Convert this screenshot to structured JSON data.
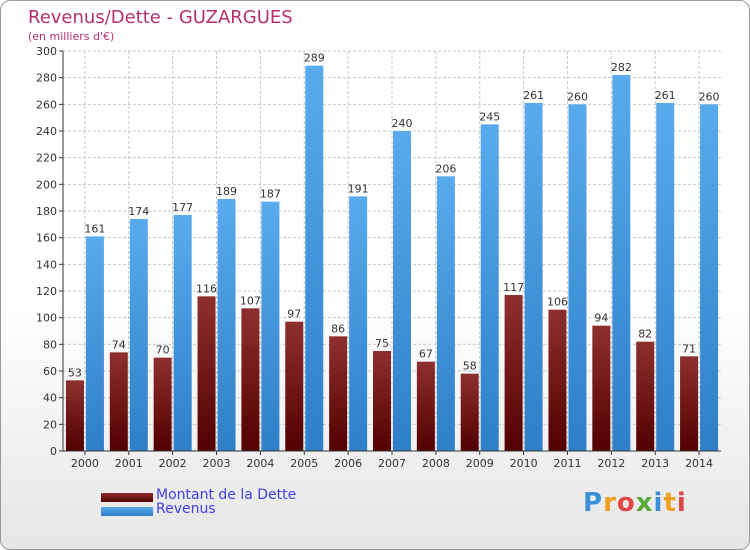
{
  "title": "Revenus/Dette - GUZARGUES",
  "subtitle": "(en milliers d'€)",
  "legend": {
    "dette": "Montant de la Dette",
    "revenus": "Revenus"
  },
  "logo": {
    "letters": [
      "P",
      "r",
      "o",
      "x",
      "i",
      "t",
      "i"
    ]
  },
  "colors": {
    "dette_top": "#8e2f2f",
    "dette_bottom": "#520000",
    "revenus_top": "#5aaaee",
    "revenus_bottom": "#2f7fc8",
    "title": "#b5306c",
    "legend_text": "#4040e6"
  },
  "chart_data": {
    "type": "bar",
    "title": "Revenus/Dette - GUZARGUES",
    "subtitle": "(en milliers d'€)",
    "categories": [
      "2000",
      "2001",
      "2002",
      "2003",
      "2004",
      "2005",
      "2006",
      "2007",
      "2008",
      "2009",
      "2010",
      "2011",
      "2012",
      "2013",
      "2014"
    ],
    "series": [
      {
        "name": "Montant de la Dette",
        "values": [
          53,
          74,
          70,
          116,
          107,
          97,
          86,
          75,
          67,
          58,
          117,
          106,
          94,
          82,
          71
        ]
      },
      {
        "name": "Revenus",
        "values": [
          161,
          174,
          177,
          189,
          187,
          289,
          191,
          240,
          206,
          245,
          261,
          260,
          282,
          261,
          260
        ]
      }
    ],
    "ylim": [
      0,
      300
    ],
    "yticks": [
      0,
      20,
      40,
      60,
      80,
      100,
      120,
      140,
      160,
      180,
      200,
      220,
      240,
      260,
      280,
      300
    ],
    "grid": true,
    "legend_position": "bottom-left"
  }
}
